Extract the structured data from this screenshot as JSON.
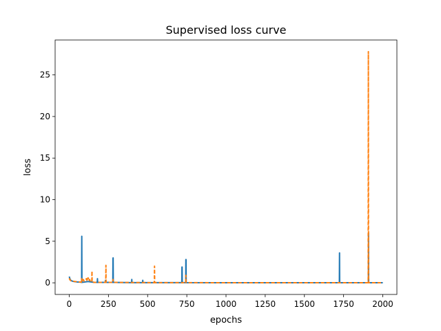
{
  "chart_data": {
    "type": "line",
    "title": "Supervised loss curve",
    "xlabel": "epochs",
    "ylabel": "loss",
    "xlim": [
      -90,
      2090
    ],
    "ylim": [
      -1.4,
      29.2
    ],
    "xticks": [
      0,
      250,
      500,
      750,
      1000,
      1250,
      1500,
      1750,
      2000
    ],
    "yticks": [
      0,
      5,
      10,
      15,
      20,
      25
    ],
    "grid": false,
    "legend": "none",
    "series": [
      {
        "color": "#1f77b4",
        "dash": "solid",
        "points": [
          [
            0,
            0.75
          ],
          [
            5,
            0.45
          ],
          [
            10,
            0.3
          ],
          [
            20,
            0.2
          ],
          [
            30,
            0.15
          ],
          [
            50,
            0.1
          ],
          [
            70,
            0.08
          ],
          [
            79,
            0.05
          ],
          [
            80,
            5.6
          ],
          [
            81,
            0.05
          ],
          [
            100,
            0.1
          ],
          [
            120,
            0.15
          ],
          [
            140,
            0.1
          ],
          [
            160,
            0.05
          ],
          [
            179,
            0.05
          ],
          [
            180,
            0.5
          ],
          [
            181,
            0.05
          ],
          [
            230,
            0.05
          ],
          [
            231,
            0.3
          ],
          [
            232,
            0.05
          ],
          [
            278,
            0.05
          ],
          [
            279,
            2.9
          ],
          [
            280,
            3.0
          ],
          [
            281,
            0.05
          ],
          [
            398,
            0.02
          ],
          [
            399,
            0.4
          ],
          [
            400,
            0.02
          ],
          [
            468,
            0.02
          ],
          [
            469,
            0.3
          ],
          [
            470,
            0.02
          ],
          [
            718,
            0.02
          ],
          [
            719,
            1.9
          ],
          [
            720,
            1.9
          ],
          [
            721,
            0.02
          ],
          [
            743,
            0.02
          ],
          [
            744,
            2.8
          ],
          [
            745,
            2.8
          ],
          [
            746,
            0.02
          ],
          [
            1000,
            0.01
          ],
          [
            1500,
            0.01
          ],
          [
            1723,
            0.01
          ],
          [
            1724,
            3.6
          ],
          [
            1725,
            0.01
          ],
          [
            1908,
            0.01
          ],
          [
            1909,
            6.0
          ],
          [
            1910,
            0.01
          ],
          [
            2000,
            0.01
          ]
        ]
      },
      {
        "color": "#ff7f0e",
        "dash": "dashed",
        "points": [
          [
            0,
            0.55
          ],
          [
            5,
            0.35
          ],
          [
            10,
            0.25
          ],
          [
            20,
            0.2
          ],
          [
            40,
            0.15
          ],
          [
            60,
            0.1
          ],
          [
            78,
            0.08
          ],
          [
            79,
            0.5
          ],
          [
            80,
            0.1
          ],
          [
            90,
            0.4
          ],
          [
            95,
            0.2
          ],
          [
            100,
            0.3
          ],
          [
            110,
            0.5
          ],
          [
            115,
            0.2
          ],
          [
            120,
            0.6
          ],
          [
            125,
            0.2
          ],
          [
            130,
            0.4
          ],
          [
            135,
            0.15
          ],
          [
            144,
            0.1
          ],
          [
            145,
            1.4
          ],
          [
            146,
            0.1
          ],
          [
            160,
            0.05
          ],
          [
            233,
            0.05
          ],
          [
            234,
            2.1
          ],
          [
            235,
            0.05
          ],
          [
            278,
            0.05
          ],
          [
            279,
            0.4
          ],
          [
            280,
            0.05
          ],
          [
            543,
            0.02
          ],
          [
            544,
            2.0
          ],
          [
            545,
            0.02
          ],
          [
            743,
            0.02
          ],
          [
            744,
            0.9
          ],
          [
            745,
            0.02
          ],
          [
            1000,
            0.01
          ],
          [
            1500,
            0.01
          ],
          [
            1907,
            0.01
          ],
          [
            1908,
            27.8
          ],
          [
            1909,
            0.01
          ],
          [
            2000,
            0.01
          ]
        ]
      }
    ]
  }
}
